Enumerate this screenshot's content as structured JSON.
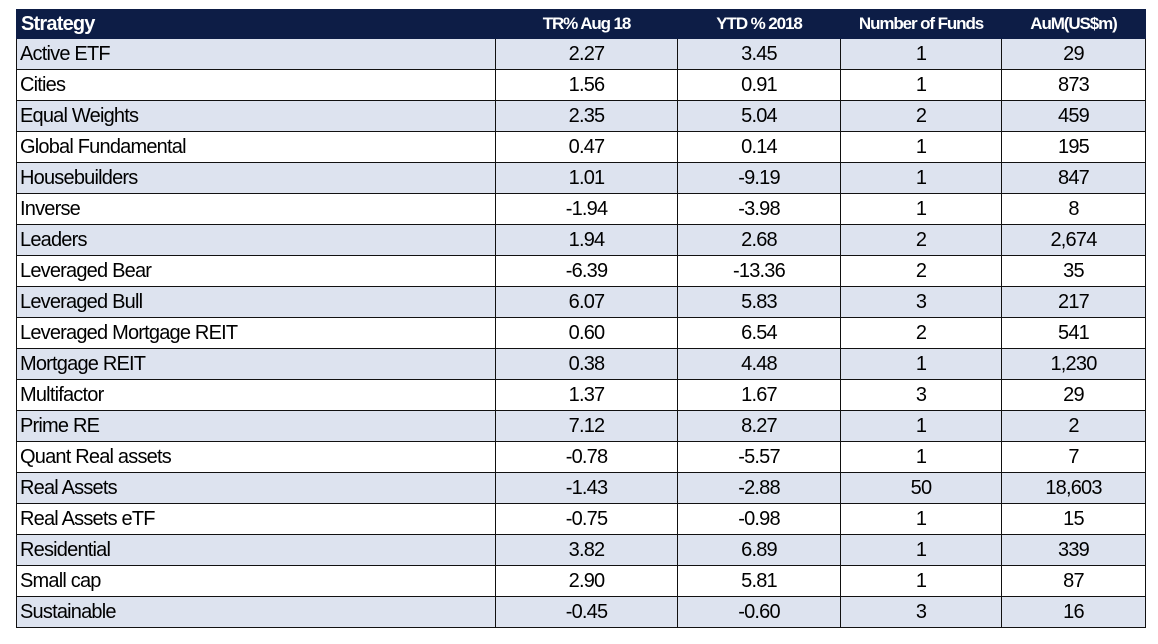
{
  "chart_data": {
    "type": "table",
    "columns": [
      "Strategy",
      "TR% Aug 18",
      "YTD % 2018",
      "Number of Funds",
      "AuM(US$m)"
    ],
    "rows": [
      [
        "Active ETF",
        "2.27",
        "3.45",
        "1",
        "29"
      ],
      [
        "Cities",
        "1.56",
        "0.91",
        "1",
        "873"
      ],
      [
        "Equal Weights",
        "2.35",
        "5.04",
        "2",
        "459"
      ],
      [
        "Global Fundamental",
        "0.47",
        "0.14",
        "1",
        "195"
      ],
      [
        "Housebuilders",
        "1.01",
        "-9.19",
        "1",
        "847"
      ],
      [
        "Inverse",
        "-1.94",
        "-3.98",
        "1",
        "8"
      ],
      [
        "Leaders",
        "1.94",
        "2.68",
        "2",
        "2,674"
      ],
      [
        "Leveraged Bear",
        "-6.39",
        "-13.36",
        "2",
        "35"
      ],
      [
        "Leveraged Bull",
        "6.07",
        "5.83",
        "3",
        "217"
      ],
      [
        "Leveraged Mortgage REIT",
        "0.60",
        "6.54",
        "2",
        "541"
      ],
      [
        "Mortgage REIT",
        "0.38",
        "4.48",
        "1",
        "1,230"
      ],
      [
        "Multifactor",
        "1.37",
        "1.67",
        "3",
        "29"
      ],
      [
        "Prime RE",
        "7.12",
        "8.27",
        "1",
        "2"
      ],
      [
        "Quant Real assets",
        "-0.78",
        "-5.57",
        "1",
        "7"
      ],
      [
        "Real Assets",
        "-1.43",
        "-2.88",
        "50",
        "18,603"
      ],
      [
        "Real Assets eTF",
        "-0.75",
        "-0.98",
        "1",
        "15"
      ],
      [
        "Residential",
        "3.82",
        "6.89",
        "1",
        "339"
      ],
      [
        "Small cap",
        "2.90",
        "5.81",
        "1",
        "87"
      ],
      [
        "Sustainable",
        "-0.45",
        "-0.60",
        "3",
        "16"
      ]
    ]
  },
  "colors": {
    "header_bg": "#0d1d46",
    "header_text": "#ffffff",
    "band_row": "#dde3ef",
    "plain_row": "#ffffff",
    "border": "#111111"
  }
}
